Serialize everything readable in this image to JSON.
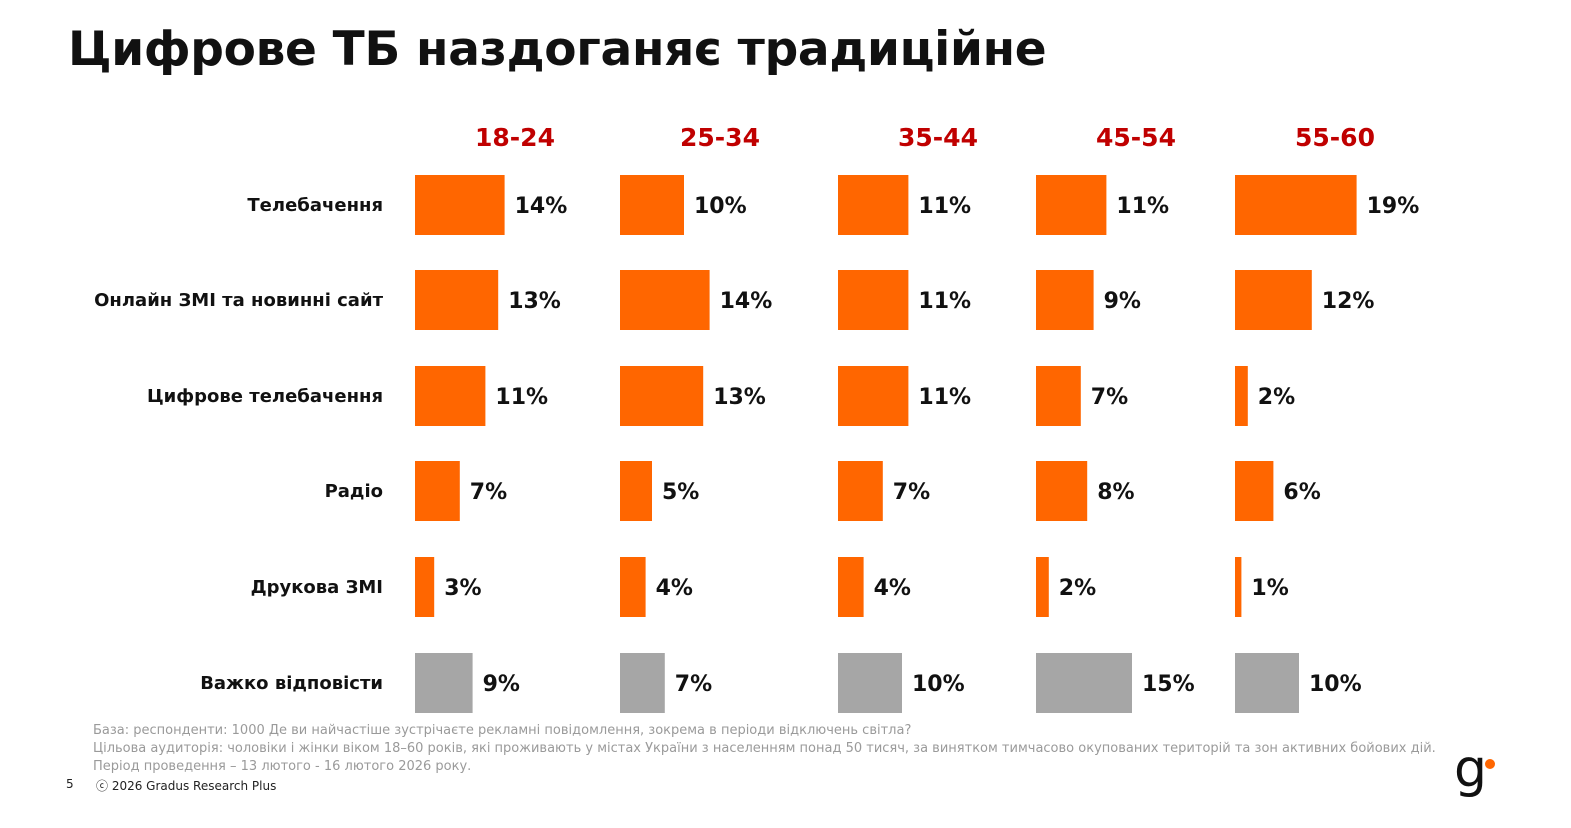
{
  "title": "Цифрове ТБ наздоганяє традиційне",
  "colors": {
    "bar_main": "#ff6600",
    "bar_dk": "#a6a6a6",
    "header": "#c00000",
    "text": "#111111",
    "footnote": "#9a9a9a",
    "logo_dot": "#ff6600"
  },
  "chart_data": {
    "type": "bar",
    "title": "Цифрове ТБ наздоганяє традиційне",
    "groups": [
      "18-24",
      "25-34",
      "35-44",
      "45-54",
      "55-60"
    ],
    "categories": [
      "Телебачення",
      "Онлайн ЗМІ та новинні сайт",
      "Цифрове телебачення",
      "Радіо",
      "Друкова ЗМІ",
      "Важко відповісти"
    ],
    "unit": "%",
    "series": [
      {
        "name": "18-24",
        "values": [
          14,
          13,
          11,
          7,
          3,
          9
        ]
      },
      {
        "name": "25-34",
        "values": [
          10,
          14,
          13,
          5,
          4,
          7
        ]
      },
      {
        "name": "35-44",
        "values": [
          11,
          11,
          11,
          7,
          4,
          10
        ]
      },
      {
        "name": "45-54",
        "values": [
          11,
          9,
          7,
          8,
          2,
          15
        ]
      },
      {
        "name": "55-60",
        "values": [
          19,
          12,
          2,
          6,
          1,
          10
        ]
      }
    ],
    "ylim": [
      0,
      20
    ]
  },
  "footnote": {
    "base": "База: респонденти: 1000 Де ви найчастіше зустрічаєте рекламні повідомлення, зокрема в періоди відключень світла?",
    "audience": "Цільова аудиторія: чоловіки і жінки віком 18–60 років, які проживають у містах України з населенням понад 50 тисяч, за винятком тимчасово окупованих територій та зон активних бойових дій. Період проведення – 13 лютого - 16 лютого 2026 року."
  },
  "page_number": "5",
  "copyright": "ⓒ 2026 Gradus Research Plus",
  "logo": {
    "letter": "g"
  }
}
